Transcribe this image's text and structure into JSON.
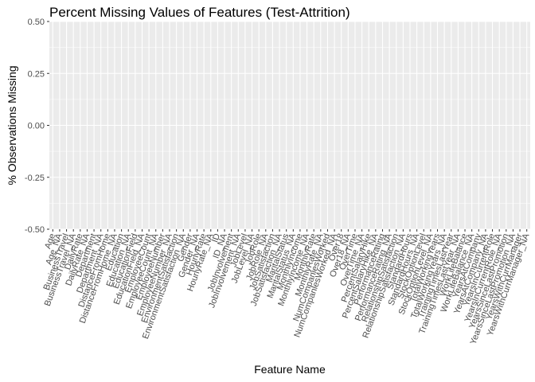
{
  "chart_data": {
    "type": "bar",
    "title": "Percent Missing Values of Features (Test-Attrition)",
    "xlabel": "Feature Name",
    "ylabel": "% Observations Missing",
    "ylim": [
      -0.5,
      0.5
    ],
    "yticks": [
      "-0.50",
      "-0.25",
      "0.00",
      "0.25",
      "0.50"
    ],
    "grid": true,
    "legend": "none",
    "colors": {
      "panel": "#ebebeb",
      "grid_major": "#ffffff",
      "tick": "#333333",
      "tick_label": "#4d4d4d"
    },
    "categories": [
      "Age",
      "Age_NA",
      "BusinessTravel",
      "BusinessTravel_NA",
      "DailyRate",
      "DailyRate_NA",
      "Department",
      "Department_NA",
      "DistanceFromHome",
      "DistanceFromHome_NA",
      "Education",
      "Education_NA",
      "EducationField",
      "EducationField_NA",
      "EmployeeCount",
      "EmployeeCount_NA",
      "EmployeeNumber",
      "EmployeeNumber_NA",
      "EnvironmentSatisfaction",
      "EnvironmentSatisfaction_NA",
      "Gender",
      "Gender_NA",
      "HourlyRate",
      "HourlyRate_NA",
      "ID",
      "ID_NA",
      "JobInvolvement",
      "JobInvolvement_NA",
      "JobLevel",
      "JobLevel_NA",
      "JobRole",
      "JobRole_NA",
      "JobSatisfaction",
      "JobSatisfaction_NA",
      "MaritalStatus",
      "MaritalStatus_NA",
      "MonthlyIncome",
      "MonthlyIncome_NA",
      "MonthlyRate",
      "MonthlyRate_NA",
      "NumCompaniesWorked",
      "NumCompaniesWorked_NA",
      "Over18",
      "Over18_NA",
      "OverTime",
      "OverTime_NA",
      "PercentSalaryHike",
      "PercentSalaryHike_NA",
      "PerformanceRating",
      "PerformanceRating_NA",
      "RelationshipSatisfaction",
      "RelationshipSatisfaction_NA",
      "StandardHours",
      "StandardHours_NA",
      "StockOptionLevel",
      "StockOptionLevel_NA",
      "TotalWorkingYears",
      "TotalWorkingYears_NA",
      "TrainingTimesLastYear",
      "TrainingTimesLastYear_NA",
      "WorkLifeBalance",
      "WorkLifeBalance_NA",
      "YearsAtCompany",
      "YearsAtCompany_NA",
      "YearsInCurrentRole",
      "YearsInCurrentRole_NA",
      "YearsSinceLastPromotion",
      "YearsSinceLastPromotion_NA",
      "YearsWithCurrManager",
      "YearsWithCurrManager_NA"
    ],
    "values": [
      0,
      0,
      0,
      0,
      0,
      0,
      0,
      0,
      0,
      0,
      0,
      0,
      0,
      0,
      0,
      0,
      0,
      0,
      0,
      0,
      0,
      0,
      0,
      0,
      0,
      0,
      0,
      0,
      0,
      0,
      0,
      0,
      0,
      0,
      0,
      0,
      0,
      0,
      0,
      0,
      0,
      0,
      0,
      0,
      0,
      0,
      0,
      0,
      0,
      0,
      0,
      0,
      0,
      0,
      0,
      0,
      0,
      0,
      0,
      0,
      0,
      0,
      0,
      0,
      0,
      0,
      0,
      0,
      0,
      0
    ]
  }
}
